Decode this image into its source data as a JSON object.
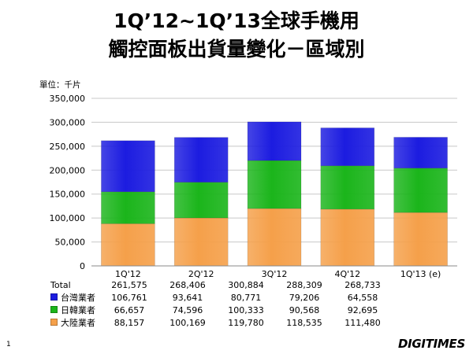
{
  "title_line1": "1Q’12~1Q’13全球手機用",
  "title_line2": "觸控面板出貨量變化－區域別",
  "unit_label": "單位：千片",
  "page_number": "1",
  "brand": "DIGITIMES",
  "chart_data": {
    "type": "bar",
    "stacked": true,
    "categories": [
      "1Q'12",
      "2Q'12",
      "3Q'12",
      "4Q'12",
      "1Q'13 (e)"
    ],
    "ylim": [
      0,
      350000
    ],
    "yticks": [
      "0",
      "50,000",
      "100,000",
      "150,000",
      "200,000",
      "250,000",
      "300,000",
      "350,000"
    ],
    "grid": true,
    "series": [
      {
        "name": "大陸業者",
        "color": "#f5a04a",
        "values": [
          88157,
          100169,
          119780,
          118535,
          111480
        ],
        "labels": [
          "88,157",
          "100,169",
          "119,780",
          "118,535",
          "111,480"
        ]
      },
      {
        "name": "日韓業者",
        "color": "#1bb51b",
        "values": [
          66657,
          74596,
          100333,
          90568,
          92695
        ],
        "labels": [
          "66,657",
          "74,596",
          "100,333",
          "90,568",
          "92,695"
        ]
      },
      {
        "name": "台灣業者",
        "color": "#1c1ce0",
        "values": [
          106761,
          93641,
          80771,
          79206,
          64558
        ],
        "labels": [
          "106,761",
          "93,641",
          "80,771",
          "79,206",
          "64,558"
        ]
      }
    ],
    "total": {
      "name": "Total",
      "values": [
        261575,
        268406,
        300884,
        288309,
        268733
      ],
      "labels": [
        "261,575",
        "268,406",
        "300,884",
        "288,309",
        "268,733"
      ]
    }
  }
}
